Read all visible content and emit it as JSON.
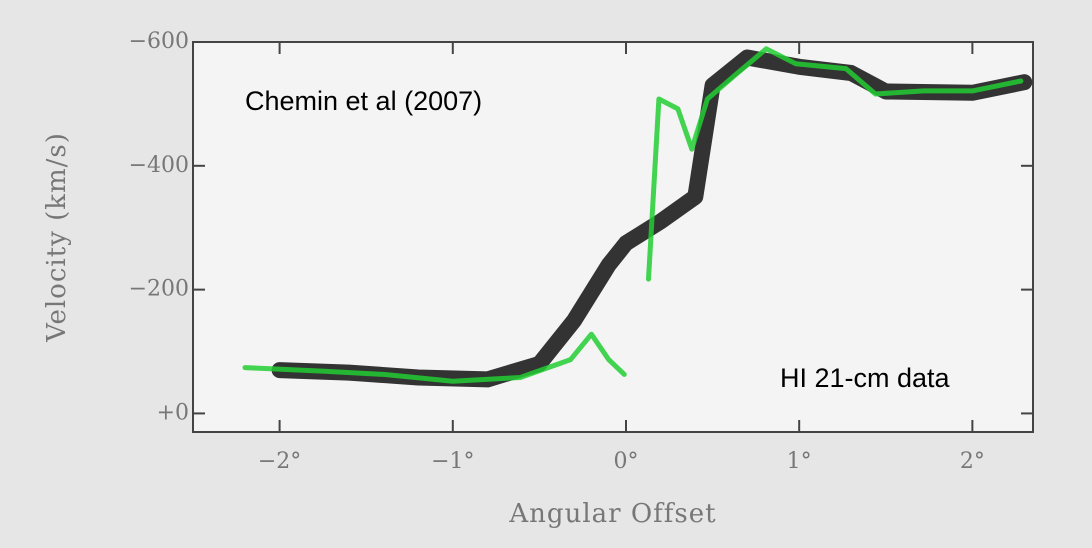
{
  "chart_data": {
    "type": "line",
    "x_label": "Angular Offset",
    "y_label": "Velocity (km/s)",
    "annotations": [
      "Chemin et al (2007)",
      "HI 21-cm data"
    ],
    "xlim": [
      -2.5,
      2.35
    ],
    "ylim": [
      -600,
      30
    ],
    "invert_y": true,
    "xticks": [
      {
        "value": -2,
        "label": "−2°"
      },
      {
        "value": -1,
        "label": "−1°"
      },
      {
        "value": 0,
        "label": "0°"
      },
      {
        "value": 1,
        "label": "1°"
      },
      {
        "value": 2,
        "label": "2°"
      }
    ],
    "yticks": [
      {
        "value": -600,
        "label": "−600"
      },
      {
        "value": -400,
        "label": "−400"
      },
      {
        "value": -200,
        "label": "−200"
      },
      {
        "value": 0,
        "label": "+0"
      }
    ],
    "series": [
      {
        "color": "#111111",
        "width": 16,
        "x": [
          -2.0,
          -1.6,
          -1.2,
          -0.8,
          -0.5,
          -0.3,
          -0.1,
          0.0,
          0.2,
          0.4,
          0.5,
          0.7,
          1.0,
          1.3,
          1.5,
          2.0,
          2.3
        ],
        "values": [
          -70,
          -66,
          -58,
          -55,
          -80,
          -150,
          -240,
          -275,
          -310,
          -350,
          -530,
          -575,
          -560,
          -550,
          -520,
          -518,
          -535
        ]
      },
      {
        "color": "#22cc33",
        "width": 5,
        "x": [
          -2.2,
          -1.74,
          -1.4,
          -1.0,
          -0.61,
          -0.32,
          -0.2,
          -0.1,
          -0.01,
          0.05,
          0.13,
          0.19,
          0.3,
          0.38,
          0.47,
          0.64,
          0.81,
          0.98,
          1.27,
          1.44,
          1.72,
          2.0,
          2.28
        ],
        "values": [
          -74,
          -68,
          -63,
          -52,
          -58,
          -87,
          -128,
          -87,
          -63,
          null,
          -217,
          -508,
          -492,
          -427,
          -508,
          -549,
          -589,
          -565,
          -557,
          -516,
          -521,
          -521,
          -537
        ]
      }
    ]
  }
}
